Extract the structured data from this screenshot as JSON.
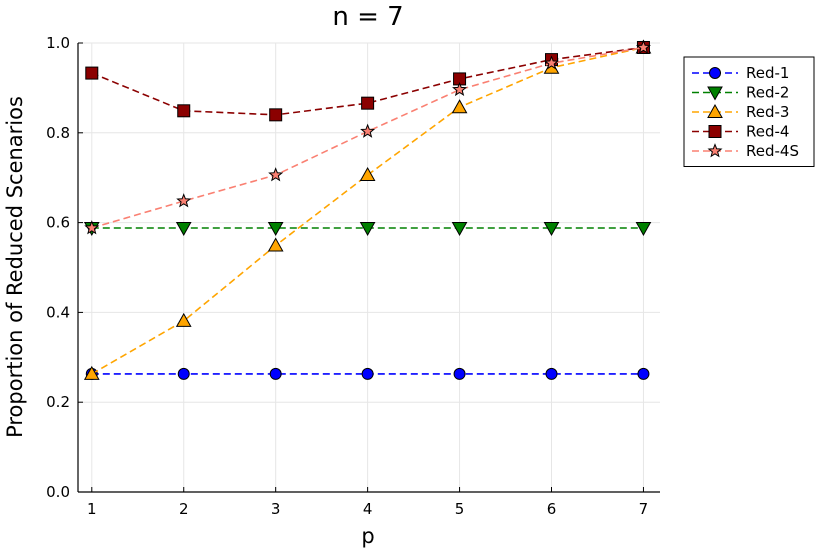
{
  "chart_data": {
    "type": "line",
    "title": "n = 7",
    "xlabel": "p",
    "ylabel": "Proportion of Reduced Scenarios",
    "x": [
      1,
      2,
      3,
      4,
      5,
      6,
      7
    ],
    "xlim": [
      0.85,
      7.18
    ],
    "ylim": [
      0,
      1
    ],
    "xticks": [
      "1",
      "2",
      "3",
      "4",
      "5",
      "6",
      "7"
    ],
    "yticks": [
      "0.0",
      "0.2",
      "0.4",
      "0.6",
      "0.8",
      "1.0"
    ],
    "grid": true,
    "legend_position": "top-right-outside",
    "series": [
      {
        "name": "Red-1",
        "color": "#0000ff",
        "marker": "circle",
        "values": [
          0.263,
          0.263,
          0.263,
          0.263,
          0.263,
          0.263,
          0.263
        ]
      },
      {
        "name": "Red-2",
        "color": "#008000",
        "marker": "triangle-down",
        "values": [
          0.588,
          0.588,
          0.588,
          0.588,
          0.588,
          0.588,
          0.588
        ]
      },
      {
        "name": "Red-3",
        "color": "#ffa500",
        "marker": "triangle-up",
        "values": [
          0.263,
          0.381,
          0.549,
          0.706,
          0.857,
          0.945,
          0.99
        ]
      },
      {
        "name": "Red-4",
        "color": "#8b0000",
        "marker": "square",
        "values": [
          0.933,
          0.849,
          0.84,
          0.866,
          0.92,
          0.963,
          0.99
        ]
      },
      {
        "name": "Red-4S",
        "color": "#fa8072",
        "marker": "star",
        "values": [
          0.588,
          0.648,
          0.706,
          0.803,
          0.896,
          0.955,
          0.99
        ]
      }
    ]
  }
}
